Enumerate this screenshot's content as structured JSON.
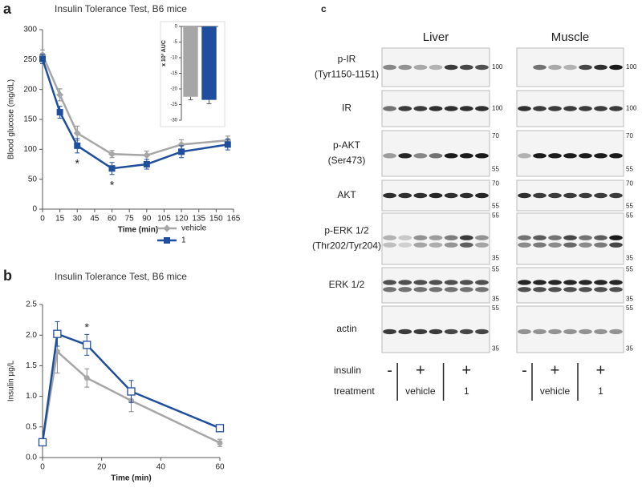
{
  "chart_data": [
    {
      "type": "line",
      "panel": "a",
      "title": "Insulin Tolerance Test, B6 mice",
      "x_label": "Time (min)",
      "y_label": "Blood glucose (mg/dL)",
      "x": [
        0,
        15,
        30,
        60,
        90,
        120,
        160
      ],
      "xlim": [
        0,
        165
      ],
      "xticks": [
        0,
        15,
        30,
        45,
        60,
        75,
        90,
        105,
        120,
        135,
        150,
        165
      ],
      "ylim": [
        0,
        300
      ],
      "yticks": [
        0,
        50,
        100,
        150,
        200,
        250,
        300
      ],
      "series": [
        {
          "name": "vehicle",
          "color": "#a6a6a6",
          "marker": "diamond",
          "values": [
            258,
            191,
            127,
            92,
            90,
            108,
            115
          ],
          "errors": [
            8,
            10,
            12,
            6,
            7,
            8,
            7
          ]
        },
        {
          "name": "1",
          "color": "#1f4e9c",
          "marker": "square",
          "values": [
            251,
            162,
            106,
            68,
            75,
            96,
            108
          ],
          "errors": [
            8,
            10,
            12,
            10,
            8,
            10,
            9
          ]
        }
      ],
      "annotations": [
        {
          "text": "*",
          "x": 30
        },
        {
          "text": "*",
          "x": 60
        }
      ],
      "legend": "lower right"
    },
    {
      "type": "bar",
      "y_label": "x 10³ AUC",
      "categories": [
        null,
        null
      ],
      "values": [
        -22.5,
        -23.5
      ],
      "errors": [
        1,
        1.2
      ],
      "colors": [
        "#a6a6a6",
        "#1f4e9c"
      ],
      "ylim": [
        -30,
        0
      ],
      "yticks": [
        0,
        -5,
        -10,
        -15,
        -20,
        -25,
        -30
      ]
    },
    {
      "type": "line",
      "panel": "b",
      "title": "Insulin Tolerance Test, B6 mice",
      "x_label": "Time (min)",
      "y_label": "Insulin µg/L",
      "x": [
        0,
        5,
        15,
        30,
        60
      ],
      "xlim": [
        0,
        60
      ],
      "xticks": [
        0,
        20,
        40,
        60
      ],
      "ylim": [
        0,
        2.5
      ],
      "yticks": [
        {
          "value": 0,
          "label": "0.0"
        },
        0.5,
        {
          "value": 1,
          "label": "1.0"
        },
        1.5,
        {
          "value": 2,
          "label": "2.0"
        },
        2.5
      ],
      "series": [
        {
          "name": "vehicle",
          "color": "#a6a6a6",
          "marker": "circle",
          "values": [
            0.25,
            1.73,
            1.3,
            0.93,
            0.24
          ],
          "errors": [
            0.02,
            0.35,
            0.15,
            0.18,
            0.06
          ]
        },
        {
          "name": "1",
          "color": "#1f4e9c",
          "marker": "open-square",
          "values": [
            0.25,
            2.02,
            1.84,
            1.08,
            0.48
          ],
          "errors": [
            0.02,
            0.2,
            0.17,
            0.18,
            0.05
          ]
        }
      ],
      "annotations": [
        {
          "text": "*",
          "x": 15
        }
      ]
    }
  ],
  "blot": {
    "panel": "c",
    "tissues": [
      "Liver",
      "Muscle"
    ],
    "rows": [
      {
        "label": [
          "p-IR",
          "(Tyr1150-1151)"
        ],
        "markers": [
          100
        ]
      },
      {
        "label": [
          "IR"
        ],
        "markers": [
          100
        ]
      },
      {
        "label": [
          "p-AKT",
          "(Ser473)"
        ],
        "markers": [
          70,
          55
        ]
      },
      {
        "label": [
          "AKT"
        ],
        "markers": [
          70,
          55
        ]
      },
      {
        "label": [
          "p-ERK 1/2",
          "(Thr202/Tyr204)"
        ],
        "markers": [
          55,
          35
        ]
      },
      {
        "label": [
          "ERK 1/2"
        ],
        "markers": [
          55,
          35
        ]
      },
      {
        "label": [
          "actin"
        ],
        "markers": [
          55,
          35
        ]
      }
    ],
    "insulin": {
      "label": "insulin",
      "values": [
        "-",
        "+",
        "+"
      ]
    },
    "treatment": {
      "label": "treatment",
      "groups": [
        "vehicle",
        "1"
      ]
    }
  }
}
